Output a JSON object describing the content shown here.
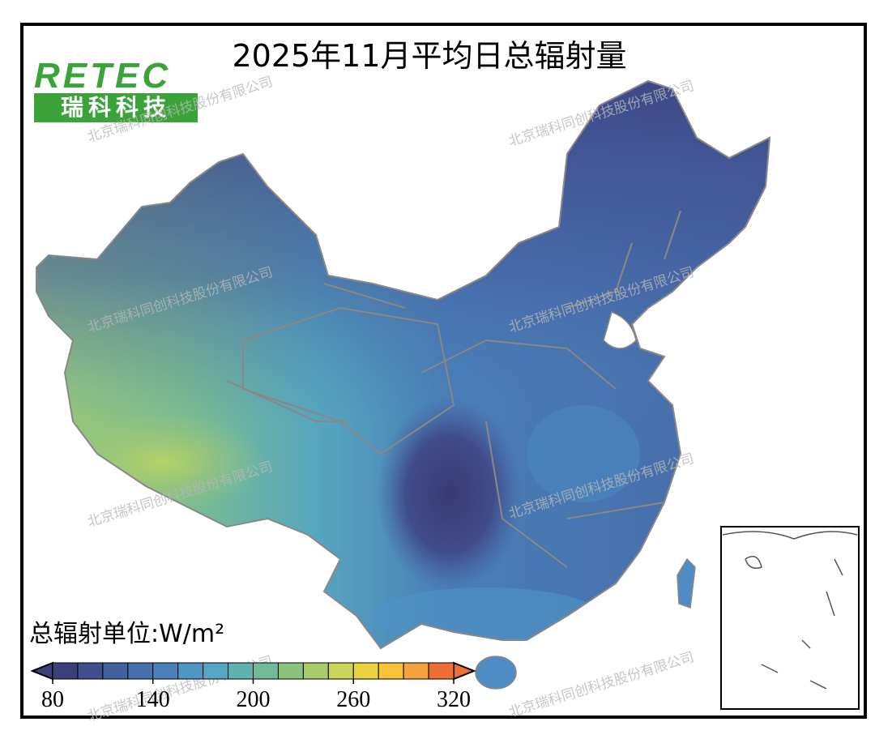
{
  "title": "2025年11月平均日总辐射量",
  "logo": {
    "brand": "RETEC",
    "name": "瑞科科技"
  },
  "watermark": "北京瑞科同创科技股份有限公司",
  "legend": {
    "unit_label": "总辐射单位:W/m²",
    "range": [
      80,
      320
    ],
    "ticks": [
      80,
      140,
      200,
      260,
      320
    ],
    "colors": [
      "#3b3f7a",
      "#3f4f8e",
      "#43609f",
      "#4670ad",
      "#4a82bb",
      "#4f95c6",
      "#55a5c4",
      "#5fb2b0",
      "#72ba98",
      "#8bc280",
      "#a8cb6c",
      "#c9d45a",
      "#ead33f",
      "#f7c237",
      "#f4a23c",
      "#ee6f33"
    ]
  }
}
